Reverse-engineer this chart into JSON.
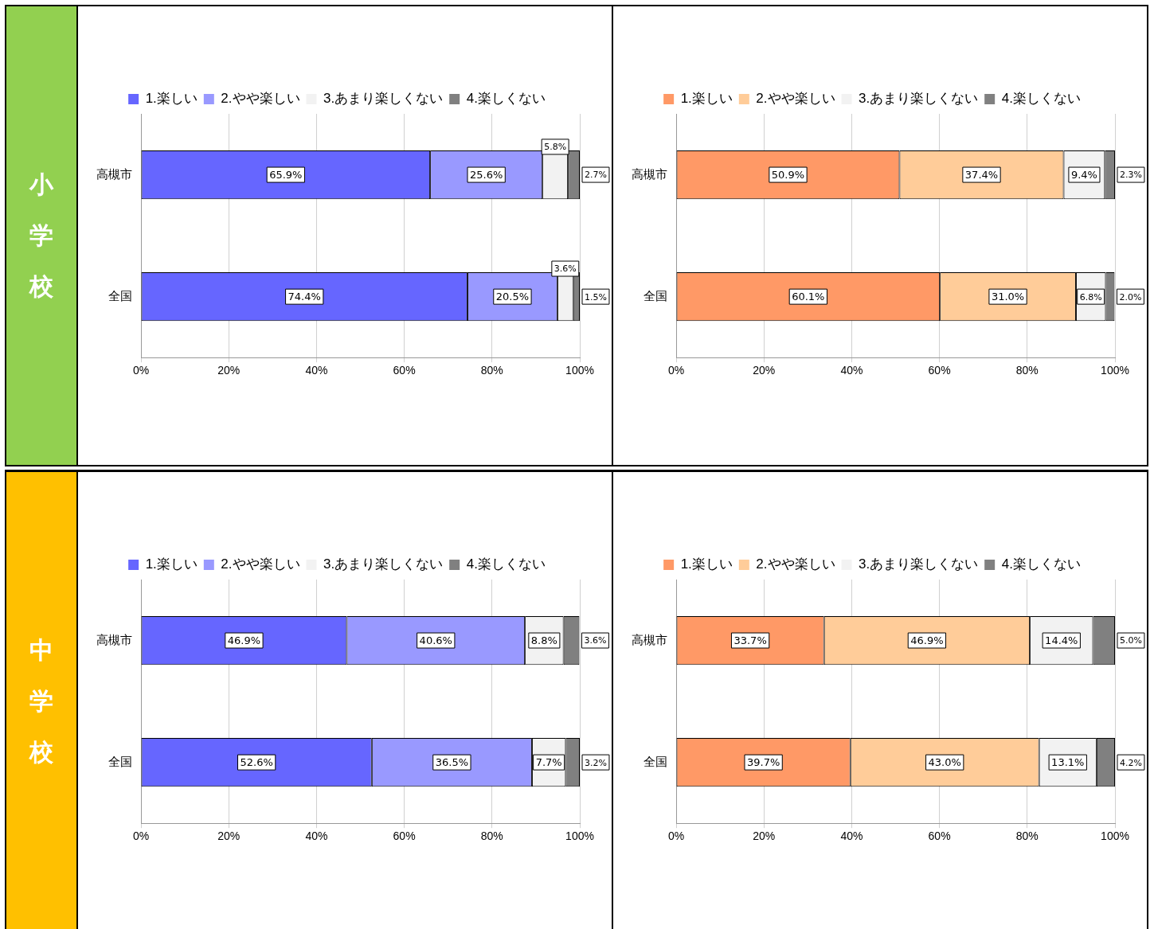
{
  "chart_data": [
    {
      "type": "bar",
      "title": "小学校",
      "orientation": "horizontal",
      "stacked": true,
      "categories": [
        "高槻市",
        "全国"
      ],
      "xlim": [
        0,
        100
      ],
      "xticks": [
        {
          "value": 0,
          "label": "0%"
        },
        {
          "value": 20,
          "label": "20%"
        },
        {
          "value": 40,
          "label": "40%"
        },
        {
          "value": 60,
          "label": "60%"
        },
        {
          "value": 80,
          "label": "80%"
        },
        {
          "value": 100,
          "label": "100%"
        }
      ],
      "grid": "x",
      "legend": "top",
      "series": [
        {
          "name": "1.楽しい",
          "color": "#6666ff",
          "values": [
            65.9,
            74.4
          ],
          "value_labels": [
            "65.9%",
            "74.4%"
          ]
        },
        {
          "name": "2.やや楽しい",
          "color": "#9999ff",
          "values": [
            25.6,
            20.5
          ],
          "value_labels": [
            "25.6%",
            "20.5%"
          ]
        },
        {
          "name": "3.あまり楽しくない",
          "color": "#f2f2f2",
          "values": [
            5.8,
            3.6
          ],
          "value_labels": [
            "5.8%",
            "3.6%"
          ]
        },
        {
          "name": "4.楽しくない",
          "color": "#808080",
          "values": [
            2.7,
            1.5
          ],
          "value_labels": [
            "2.7%",
            "1.5%"
          ]
        }
      ]
    },
    {
      "type": "bar",
      "orientation": "horizontal",
      "stacked": true,
      "categories": [
        "高槻市",
        "全国"
      ],
      "xlim": [
        0,
        100
      ],
      "xticks": [
        {
          "value": 0,
          "label": "0%"
        },
        {
          "value": 20,
          "label": "20%"
        },
        {
          "value": 40,
          "label": "40%"
        },
        {
          "value": 60,
          "label": "60%"
        },
        {
          "value": 80,
          "label": "80%"
        },
        {
          "value": 100,
          "label": "100%"
        }
      ],
      "grid": "x",
      "legend": "top",
      "series": [
        {
          "name": "1.楽しい",
          "color": "#ff9966",
          "values": [
            50.9,
            60.1
          ],
          "value_labels": [
            "50.9%",
            "60.1%"
          ]
        },
        {
          "name": "2.やや楽しい",
          "color": "#ffcc99",
          "values": [
            37.4,
            31.0
          ],
          "value_labels": [
            "37.4%",
            "31.0%"
          ]
        },
        {
          "name": "3.あまり楽しくない",
          "color": "#f2f2f2",
          "values": [
            9.4,
            6.8
          ],
          "value_labels": [
            "9.4%",
            "6.8%"
          ]
        },
        {
          "name": "4.楽しくない",
          "color": "#808080",
          "values": [
            2.3,
            2.0
          ],
          "value_labels": [
            "2.3%",
            "2.0%"
          ]
        }
      ]
    },
    {
      "type": "bar",
      "title": "中学校",
      "orientation": "horizontal",
      "stacked": true,
      "categories": [
        "高槻市",
        "全国"
      ],
      "xlim": [
        0,
        100
      ],
      "xticks": [
        {
          "value": 0,
          "label": "0%"
        },
        {
          "value": 20,
          "label": "20%"
        },
        {
          "value": 40,
          "label": "40%"
        },
        {
          "value": 60,
          "label": "60%"
        },
        {
          "value": 80,
          "label": "80%"
        },
        {
          "value": 100,
          "label": "100%"
        }
      ],
      "grid": "x",
      "legend": "top",
      "series": [
        {
          "name": "1.楽しい",
          "color": "#6666ff",
          "values": [
            46.9,
            52.6
          ],
          "value_labels": [
            "46.9%",
            "52.6%"
          ]
        },
        {
          "name": "2.やや楽しい",
          "color": "#9999ff",
          "values": [
            40.6,
            36.5
          ],
          "value_labels": [
            "40.6%",
            "36.5%"
          ]
        },
        {
          "name": "3.あまり楽しくない",
          "color": "#f2f2f2",
          "values": [
            8.8,
            7.7
          ],
          "value_labels": [
            "8.8%",
            "7.7%"
          ]
        },
        {
          "name": "4.楽しくない",
          "color": "#808080",
          "values": [
            3.6,
            3.2
          ],
          "value_labels": [
            "3.6%",
            "3.2%"
          ]
        }
      ]
    },
    {
      "type": "bar",
      "orientation": "horizontal",
      "stacked": true,
      "categories": [
        "高槻市",
        "全国"
      ],
      "xlim": [
        0,
        100
      ],
      "xticks": [
        {
          "value": 0,
          "label": "0%"
        },
        {
          "value": 20,
          "label": "20%"
        },
        {
          "value": 40,
          "label": "40%"
        },
        {
          "value": 60,
          "label": "60%"
        },
        {
          "value": 80,
          "label": "80%"
        },
        {
          "value": 100,
          "label": "100%"
        }
      ],
      "grid": "x",
      "legend": "top",
      "series": [
        {
          "name": "1.楽しい",
          "color": "#ff9966",
          "values": [
            33.7,
            39.7
          ],
          "value_labels": [
            "33.7%",
            "39.7%"
          ]
        },
        {
          "name": "2.やや楽しい",
          "color": "#ffcc99",
          "values": [
            46.9,
            43.0
          ],
          "value_labels": [
            "46.9%",
            "43.0%"
          ]
        },
        {
          "name": "3.あまり楽しくない",
          "color": "#f2f2f2",
          "values": [
            14.4,
            13.1
          ],
          "value_labels": [
            "14.4%",
            "13.1%"
          ]
        },
        {
          "name": "4.楽しくない",
          "color": "#808080",
          "values": [
            5.0,
            4.2
          ],
          "value_labels": [
            "5.0%",
            "4.2%"
          ]
        }
      ]
    }
  ]
}
